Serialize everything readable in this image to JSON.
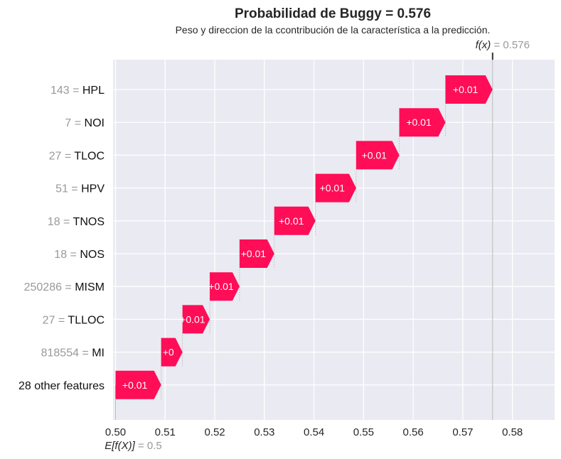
{
  "chart_data": {
    "type": "waterfall",
    "title": "Probabilidad de Buggy = 0.576",
    "subtitle": "Peso y direccion de la ccontribución de la característica a la predicción.",
    "base_value": 0.5,
    "base_label_name": "E[f(X)]",
    "base_label_value": "= 0.5",
    "output_value": 0.576,
    "output_label_name": "f(x)",
    "output_label_value": "= 0.576",
    "xlim": [
      0.4995,
      0.5885
    ],
    "xticks": [
      0.5,
      0.51,
      0.52,
      0.53,
      0.54,
      0.55,
      0.56,
      0.57,
      0.58
    ],
    "xtick_labels": [
      "0.50",
      "0.51",
      "0.52",
      "0.53",
      "0.54",
      "0.55",
      "0.56",
      "0.57",
      "0.58"
    ],
    "grid": true,
    "color_positive": "#ff0d57",
    "features": [
      {
        "value": "143 =",
        "name": "HPL",
        "start": 0.5665,
        "end": 0.576,
        "label": "+0.01"
      },
      {
        "value": "7 =",
        "name": "NOI",
        "start": 0.5572,
        "end": 0.5665,
        "label": "+0.01"
      },
      {
        "value": "27 =",
        "name": "TLOC",
        "start": 0.5485,
        "end": 0.5572,
        "label": "+0.01"
      },
      {
        "value": "51 =",
        "name": "HPV",
        "start": 0.5403,
        "end": 0.5485,
        "label": "+0.01"
      },
      {
        "value": "18 =",
        "name": "TNOS",
        "start": 0.532,
        "end": 0.5403,
        "label": "+0.01"
      },
      {
        "value": "18 =",
        "name": "NOS",
        "start": 0.525,
        "end": 0.532,
        "label": "+0.01"
      },
      {
        "value": "250286 =",
        "name": "MISM",
        "start": 0.519,
        "end": 0.525,
        "label": "+0.01"
      },
      {
        "value": "27 =",
        "name": "TLLOC",
        "start": 0.5135,
        "end": 0.519,
        "label": "+0.01"
      },
      {
        "value": "818554 =",
        "name": "MI",
        "start": 0.5092,
        "end": 0.5135,
        "label": "+0"
      },
      {
        "value": "",
        "name": "28 other features",
        "start": 0.5,
        "end": 0.5092,
        "label": "+0.01"
      }
    ]
  }
}
